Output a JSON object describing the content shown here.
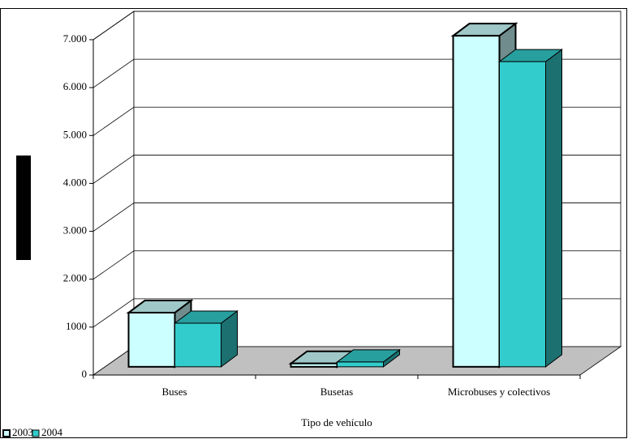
{
  "chart_data": {
    "type": "bar3d",
    "x_label": "Tipo de vehículo",
    "categories": [
      "Buses",
      "Busetas",
      "Microbuses y colectivos"
    ],
    "series": [
      {
        "name": "2003",
        "color": "#ccffff",
        "values": [
          1130,
          70,
          6910
        ]
      },
      {
        "name": "2004",
        "color": "#33cccc",
        "values": [
          910,
          100,
          6370
        ]
      }
    ],
    "ylim": [
      0,
      7000
    ],
    "yticks": [
      0,
      1000,
      {
        "value": 2000,
        "label": "2.000"
      },
      {
        "value": 3000,
        "label": "3.000"
      },
      {
        "value": 4000,
        "label": "4.000"
      },
      {
        "value": 5000,
        "label": "5.000"
      },
      {
        "value": 6000,
        "label": "6.000"
      },
      {
        "value": 7000,
        "label": "7.000"
      }
    ],
    "grid": true,
    "legend": "bottom-left"
  }
}
